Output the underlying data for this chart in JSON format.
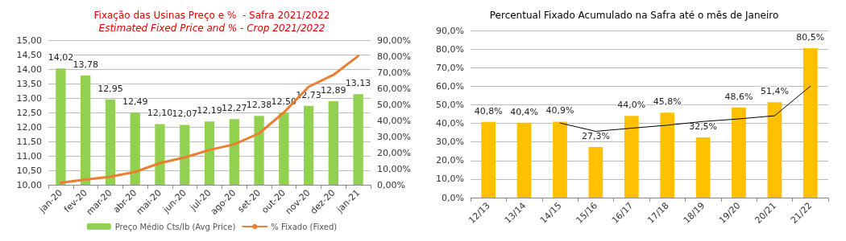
{
  "chart_data": [
    {
      "type": "bar",
      "title": "Fixação das Usinas Preço e %  - Safra 2021/2022",
      "subtitle": "Estimated Fixed Price and % - Crop 2021/2022",
      "categories": [
        "jan-20",
        "fev-20",
        "mar-20",
        "abr-20",
        "mai-20",
        "jun-20",
        "jul-20",
        "ago-20",
        "set-20",
        "out-20",
        "nov-20",
        "dez-20",
        "jan-21"
      ],
      "series": [
        {
          "name": "Preço Médio Cts/lb (Avg Price)",
          "type": "bar",
          "color": "#92d050",
          "values": [
            14.02,
            13.78,
            12.95,
            12.49,
            12.1,
            12.07,
            12.19,
            12.27,
            12.38,
            12.5,
            12.73,
            12.89,
            13.13
          ],
          "value_labels": [
            "14,02",
            "13,78",
            "12,95",
            "12,49",
            "12,10",
            "12,07",
            "12,19",
            "12,27",
            "12,38",
            "12,50",
            "12,73",
            "12,89",
            "13,13"
          ]
        },
        {
          "name": "% Fixado (Fixed)",
          "type": "line",
          "axis": "y2",
          "color": "#ed7d31",
          "values": [
            1.2,
            3.3,
            5,
            8,
            13.5,
            17,
            21.7,
            25.2,
            32,
            45,
            61,
            68.4,
            80.2
          ]
        }
      ],
      "ylim": [
        10,
        15
      ],
      "yticks": [
        {
          "value": 10,
          "label": "10,00"
        },
        {
          "value": 10.5,
          "label": "10,50"
        },
        {
          "value": 11,
          "label": "11,00"
        },
        {
          "value": 11.5,
          "label": "11,50"
        },
        {
          "value": 12,
          "label": "12,00"
        },
        {
          "value": 12.5,
          "label": "12,50"
        },
        {
          "value": 13,
          "label": "13,00"
        },
        {
          "value": 13.5,
          "label": "13,50"
        },
        {
          "value": 14,
          "label": "14,00"
        },
        {
          "value": 14.5,
          "label": "14,50"
        },
        {
          "value": 15,
          "label": "15,00"
        }
      ],
      "y2lim": [
        0,
        90
      ],
      "y2ticks": [
        {
          "value": 0,
          "label": "0,00%"
        },
        {
          "value": 10,
          "label": "10,00%"
        },
        {
          "value": 20,
          "label": "20,00%"
        },
        {
          "value": 30,
          "label": "30,00%"
        },
        {
          "value": 40,
          "label": "40,00%"
        },
        {
          "value": 50,
          "label": "50,00%"
        },
        {
          "value": 60,
          "label": "60,00%"
        },
        {
          "value": 70,
          "label": "70,00%"
        },
        {
          "value": 80,
          "label": "80,00%"
        },
        {
          "value": 90,
          "label": "90,00%"
        }
      ],
      "grid": "y",
      "legend": "bottom",
      "marker": "none"
    },
    {
      "type": "bar",
      "title": "Percentual Fixado Acumulado na Safra até o mês de Janeiro",
      "categories": [
        "12/13",
        "13/14",
        "14/15",
        "15/16",
        "16/17",
        "17/18",
        "18/19",
        "19/20",
        "20/21",
        "21/22"
      ],
      "series": [
        {
          "type": "bar",
          "color": "#ffc000",
          "values": [
            40.8,
            40.4,
            40.9,
            27.3,
            44.0,
            45.8,
            32.5,
            48.6,
            51.4,
            80.5
          ],
          "value_labels": [
            "40,8%",
            "40,4%",
            "40,9%",
            "27,3%",
            "44,0%",
            "45,8%",
            "32,5%",
            "48,6%",
            "51,4%",
            "80,5%"
          ]
        },
        {
          "type": "line",
          "color": "#000000",
          "values": [
            null,
            null,
            40.2,
            35.7,
            37.4,
            39,
            41,
            42.4,
            44.1,
            60
          ]
        }
      ],
      "ylim": [
        0,
        90
      ],
      "yticks": [
        {
          "value": 0,
          "label": "0,0%"
        },
        {
          "value": 10,
          "label": "10,0%"
        },
        {
          "value": 20,
          "label": "20,0%"
        },
        {
          "value": 30,
          "label": "30,0%"
        },
        {
          "value": 40,
          "label": "40,0%"
        },
        {
          "value": 50,
          "label": "50,0%"
        },
        {
          "value": 60,
          "label": "60,0%"
        },
        {
          "value": 70,
          "label": "70,0%"
        },
        {
          "value": 80,
          "label": "80,0%"
        },
        {
          "value": 90,
          "label": "90,0%"
        }
      ],
      "grid": "y",
      "legend": false,
      "marker": "none"
    }
  ]
}
